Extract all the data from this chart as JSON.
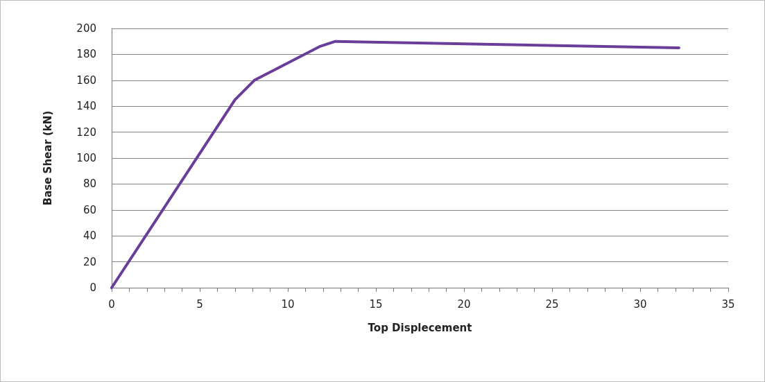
{
  "chart_data": {
    "type": "line",
    "xlabel": "Top Displecement",
    "ylabel": "Base Shear (kN)",
    "x": [
      0,
      7,
      8.1,
      11.8,
      12.7,
      32.2
    ],
    "series": [
      {
        "color": "#6a3d9a",
        "values": [
          0,
          145,
          160,
          186,
          190,
          185
        ]
      }
    ],
    "xlim": [
      0,
      35
    ],
    "xticks": [
      0,
      5,
      10,
      15,
      20,
      25,
      30,
      35
    ],
    "ylim": [
      0,
      200
    ],
    "yticks": [
      0,
      20,
      40,
      60,
      80,
      100,
      120,
      140,
      160,
      180,
      200
    ],
    "grid": "y",
    "marker": "none",
    "line_style": "solid"
  }
}
